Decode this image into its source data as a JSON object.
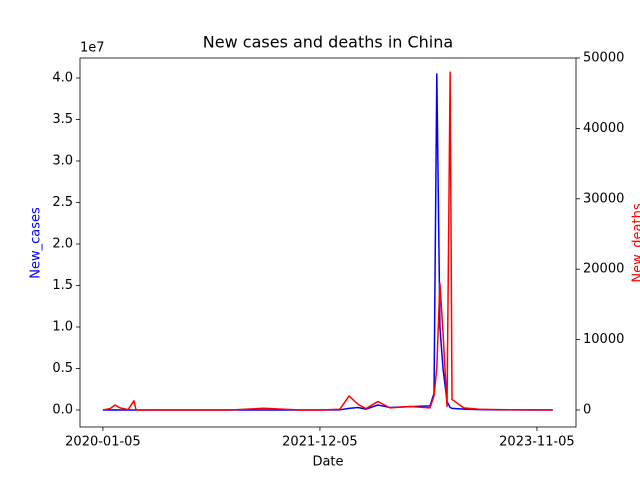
{
  "chart_data": {
    "type": "line",
    "title": "New cases and deaths in China",
    "xlabel": "Date",
    "ylabel": "New_cases",
    "y2label": "New_deaths",
    "y_offset_text": "1e7",
    "x": [
      "2020-01-05",
      "2020-01-28",
      "2020-02-13",
      "2020-02-29",
      "2020-03-26",
      "2020-04-14",
      "2020-04-21",
      "2020-08-10",
      "2021-02-18",
      "2021-06-07",
      "2021-10-01",
      "2021-12-05",
      "2022-02-07",
      "2022-03-09",
      "2022-04-07",
      "2022-05-02",
      "2022-06-10",
      "2022-07-19",
      "2022-09-21",
      "2022-11-25",
      "2022-12-08",
      "2022-12-17",
      "2022-12-27",
      "2023-01-06",
      "2023-01-19",
      "2023-01-29",
      "2023-02-04",
      "2023-03-14",
      "2023-05-02",
      "2023-07-05",
      "2023-11-05",
      "2023-12-26"
    ],
    "series": [
      {
        "name": "New_cases",
        "color": "#0000ff",
        "axis": "y",
        "values": [
          0,
          2000,
          15000,
          2000,
          500,
          300,
          100,
          500,
          1000,
          800,
          1000,
          1000,
          20000,
          200000,
          300000,
          100000,
          600000,
          300000,
          400000,
          500000,
          2000000,
          40500000,
          10000000,
          5000000,
          1000000,
          300000,
          200000,
          100000,
          50000,
          20000,
          5000,
          3000
        ]
      },
      {
        "name": "New_deaths",
        "color": "#ff0000",
        "axis": "y2",
        "values": [
          0,
          200,
          700,
          300,
          50,
          1300,
          0,
          0,
          0,
          250,
          0,
          0,
          100,
          2000,
          800,
          200,
          1200,
          300,
          500,
          300,
          2000,
          6000,
          18000,
          11000,
          500,
          48000,
          1500,
          300,
          100,
          50,
          20,
          10
        ]
      }
    ],
    "xlim": [
      "2019-10-23",
      "2024-03-10"
    ],
    "xticks": [
      "2020-01-05",
      "2021-12-05",
      "2023-11-05"
    ],
    "ylim": [
      -2050000,
      42410000
    ],
    "yticks": [
      {
        "value": 0,
        "label": "0.0"
      },
      {
        "value": 5000000,
        "label": "0.5"
      },
      {
        "value": 10000000,
        "label": "1.0"
      },
      {
        "value": 15000000,
        "label": "1.5"
      },
      {
        "value": 20000000,
        "label": "2.0"
      },
      {
        "value": 25000000,
        "label": "2.5"
      },
      {
        "value": 30000000,
        "label": "3.0"
      },
      {
        "value": 35000000,
        "label": "3.5"
      },
      {
        "value": 40000000,
        "label": "4.0"
      }
    ],
    "y2lim": [
      -2415,
      50000
    ],
    "y2ticks": [
      0,
      10000,
      20000,
      30000,
      40000,
      50000
    ]
  }
}
